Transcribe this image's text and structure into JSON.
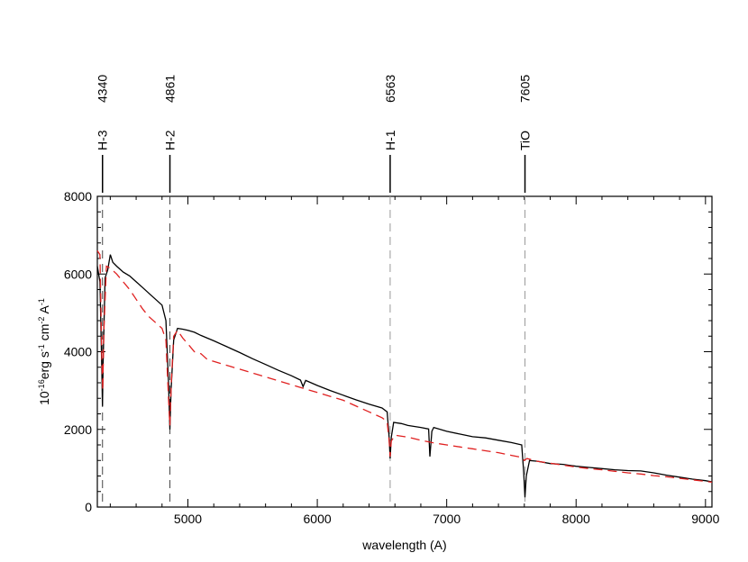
{
  "chart_data": {
    "type": "line",
    "xlabel": "wavelength (A)",
    "ylabel_parts": {
      "pre": "10",
      "exp": "-16",
      "mid": "erg s",
      "exp2": "-1",
      "mid2": " cm",
      "exp3": "-2",
      "mid3": " A",
      "exp4": "-1"
    },
    "xlim": [
      4300,
      9050
    ],
    "ylim": [
      0,
      8000
    ],
    "x_ticks": [
      5000,
      6000,
      7000,
      8000,
      9000
    ],
    "x_tick_labels": [
      "5000",
      "6000",
      "7000",
      "8000",
      "9000"
    ],
    "y_ticks": [
      0,
      2000,
      4000,
      6000,
      8000
    ],
    "y_tick_labels": [
      "0",
      "2000",
      "4000",
      "6000",
      "8000"
    ],
    "line_markers": [
      {
        "name": "H-3",
        "wavelength": 4340,
        "label": "4340"
      },
      {
        "name": "H-2",
        "wavelength": 4861,
        "label": "4861"
      },
      {
        "name": "H-1",
        "wavelength": 6563,
        "label": "6563"
      },
      {
        "name": "TiO",
        "wavelength": 7605,
        "label": "7605"
      }
    ],
    "series": [
      {
        "color": "#000000",
        "dash": "solid",
        "points": [
          [
            4300,
            6200
          ],
          [
            4320,
            5800
          ],
          [
            4335,
            3500
          ],
          [
            4340,
            2600
          ],
          [
            4345,
            3800
          ],
          [
            4360,
            5900
          ],
          [
            4380,
            6100
          ],
          [
            4400,
            6500
          ],
          [
            4420,
            6300
          ],
          [
            4450,
            6200
          ],
          [
            4500,
            6050
          ],
          [
            4550,
            5950
          ],
          [
            4600,
            5800
          ],
          [
            4650,
            5650
          ],
          [
            4700,
            5500
          ],
          [
            4750,
            5350
          ],
          [
            4800,
            5200
          ],
          [
            4830,
            4800
          ],
          [
            4850,
            3200
          ],
          [
            4861,
            2000
          ],
          [
            4870,
            3000
          ],
          [
            4890,
            4300
          ],
          [
            4920,
            4600
          ],
          [
            4960,
            4580
          ],
          [
            5000,
            4550
          ],
          [
            5050,
            4500
          ],
          [
            5100,
            4420
          ],
          [
            5150,
            4350
          ],
          [
            5200,
            4280
          ],
          [
            5300,
            4130
          ],
          [
            5400,
            3980
          ],
          [
            5500,
            3820
          ],
          [
            5600,
            3670
          ],
          [
            5700,
            3520
          ],
          [
            5800,
            3380
          ],
          [
            5870,
            3270
          ],
          [
            5890,
            3100
          ],
          [
            5910,
            3260
          ],
          [
            6000,
            3130
          ],
          [
            6100,
            3000
          ],
          [
            6200,
            2880
          ],
          [
            6300,
            2760
          ],
          [
            6400,
            2650
          ],
          [
            6500,
            2550
          ],
          [
            6540,
            2450
          ],
          [
            6555,
            1800
          ],
          [
            6563,
            1250
          ],
          [
            6572,
            1800
          ],
          [
            6590,
            2180
          ],
          [
            6650,
            2150
          ],
          [
            6700,
            2100
          ],
          [
            6800,
            2050
          ],
          [
            6860,
            2010
          ],
          [
            6870,
            1300
          ],
          [
            6885,
            1950
          ],
          [
            6900,
            2050
          ],
          [
            7000,
            1950
          ],
          [
            7100,
            1880
          ],
          [
            7200,
            1810
          ],
          [
            7300,
            1780
          ],
          [
            7400,
            1720
          ],
          [
            7500,
            1660
          ],
          [
            7580,
            1600
          ],
          [
            7595,
            900
          ],
          [
            7605,
            250
          ],
          [
            7615,
            800
          ],
          [
            7640,
            1200
          ],
          [
            7700,
            1180
          ],
          [
            7800,
            1120
          ],
          [
            7900,
            1100
          ],
          [
            8000,
            1050
          ],
          [
            8100,
            1020
          ],
          [
            8200,
            990
          ],
          [
            8300,
            960
          ],
          [
            8400,
            940
          ],
          [
            8500,
            930
          ],
          [
            8600,
            880
          ],
          [
            8700,
            820
          ],
          [
            8800,
            770
          ],
          [
            8900,
            720
          ],
          [
            9000,
            680
          ],
          [
            9050,
            650
          ]
        ]
      },
      {
        "color": "#e02020",
        "dash": "dashed",
        "points": [
          [
            4300,
            6600
          ],
          [
            4320,
            6500
          ],
          [
            4335,
            3800
          ],
          [
            4342,
            3000
          ],
          [
            4350,
            4500
          ],
          [
            4370,
            6200
          ],
          [
            4400,
            6150
          ],
          [
            4450,
            6000
          ],
          [
            4500,
            5800
          ],
          [
            4550,
            5600
          ],
          [
            4600,
            5350
          ],
          [
            4650,
            5100
          ],
          [
            4700,
            4900
          ],
          [
            4750,
            4750
          ],
          [
            4800,
            4600
          ],
          [
            4830,
            4300
          ],
          [
            4850,
            2800
          ],
          [
            4861,
            2100
          ],
          [
            4872,
            3200
          ],
          [
            4890,
            4400
          ],
          [
            4920,
            4550
          ],
          [
            4960,
            4350
          ],
          [
            5000,
            4200
          ],
          [
            5050,
            4000
          ],
          [
            5100,
            3950
          ],
          [
            5150,
            3800
          ],
          [
            5200,
            3750
          ],
          [
            5300,
            3650
          ],
          [
            5400,
            3550
          ],
          [
            5500,
            3450
          ],
          [
            5600,
            3350
          ],
          [
            5700,
            3250
          ],
          [
            5800,
            3150
          ],
          [
            5900,
            3050
          ],
          [
            6000,
            2950
          ],
          [
            6100,
            2850
          ],
          [
            6200,
            2750
          ],
          [
            6300,
            2600
          ],
          [
            6400,
            2450
          ],
          [
            6500,
            2300
          ],
          [
            6540,
            2200
          ],
          [
            6555,
            1700
          ],
          [
            6563,
            1300
          ],
          [
            6572,
            1700
          ],
          [
            6600,
            1850
          ],
          [
            6700,
            1800
          ],
          [
            6800,
            1720
          ],
          [
            6900,
            1650
          ],
          [
            7000,
            1600
          ],
          [
            7100,
            1550
          ],
          [
            7200,
            1500
          ],
          [
            7300,
            1450
          ],
          [
            7400,
            1400
          ],
          [
            7500,
            1330
          ],
          [
            7580,
            1280
          ],
          [
            7600,
            1200
          ],
          [
            7620,
            1250
          ],
          [
            7700,
            1180
          ],
          [
            7800,
            1130
          ],
          [
            7900,
            1080
          ],
          [
            8000,
            1030
          ],
          [
            8100,
            990
          ],
          [
            8200,
            960
          ],
          [
            8300,
            920
          ],
          [
            8400,
            880
          ],
          [
            8500,
            850
          ],
          [
            8600,
            810
          ],
          [
            8700,
            780
          ],
          [
            8800,
            740
          ],
          [
            8900,
            700
          ],
          [
            9000,
            660
          ],
          [
            9050,
            640
          ]
        ]
      }
    ]
  }
}
